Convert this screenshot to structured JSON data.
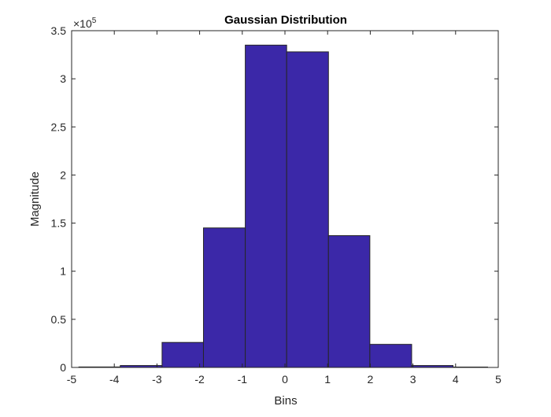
{
  "chart_data": {
    "type": "bar",
    "title": "Gaussian Distribution",
    "xlabel": "Bins",
    "ylabel": "Magnitude",
    "exponent_label": "×10",
    "exponent_power": "5",
    "xlim": [
      -5,
      5
    ],
    "ylim": [
      0,
      3.5
    ],
    "xticks": [
      -5,
      -4,
      -3,
      -2,
      -1,
      0,
      1,
      2,
      3,
      4,
      5
    ],
    "xtick_labels": [
      "-5",
      "-4",
      "-3",
      "-2",
      "-1",
      "0",
      "1",
      "2",
      "3",
      "4",
      "5"
    ],
    "yticks": [
      0,
      0.5,
      1,
      1.5,
      2,
      2.5,
      3,
      3.5
    ],
    "ytick_labels": [
      "0",
      "0.5",
      "1",
      "1.5",
      "2",
      "2.5",
      "3",
      "3.5"
    ],
    "bins": [
      {
        "x0": -4.83,
        "x1": -3.86,
        "value": 0.005
      },
      {
        "x0": -3.86,
        "x1": -2.88,
        "value": 0.02
      },
      {
        "x0": -2.88,
        "x1": -1.91,
        "value": 0.26
      },
      {
        "x0": -1.91,
        "x1": -0.93,
        "value": 1.45
      },
      {
        "x0": -0.93,
        "x1": 0.04,
        "value": 3.35
      },
      {
        "x0": 0.04,
        "x1": 1.02,
        "value": 3.28
      },
      {
        "x0": 1.02,
        "x1": 1.99,
        "value": 1.37
      },
      {
        "x0": 1.99,
        "x1": 2.97,
        "value": 0.24
      },
      {
        "x0": 2.97,
        "x1": 3.94,
        "value": 0.02
      },
      {
        "x0": 3.94,
        "x1": 4.75,
        "value": 0.004
      }
    ],
    "grid": false,
    "legend": "none",
    "bar_color": "#3b28a8",
    "edge_color": "#262626"
  }
}
